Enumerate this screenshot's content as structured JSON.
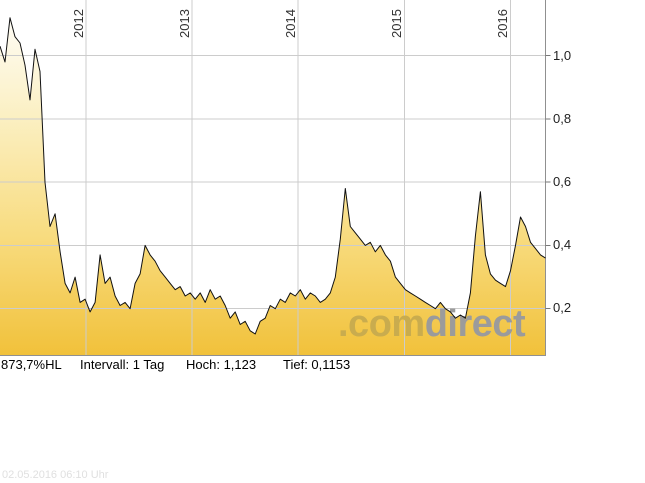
{
  "watermark": {
    "part1": ".com",
    "part2": "direct",
    "color_com": "#C9AC4E",
    "color_direct": "#9B9B9B"
  },
  "footer": {
    "change": "873,7%HL",
    "interval": "Intervall: 1 Tag",
    "high": "Hoch: 1,123",
    "low": "Tief: 0,1153"
  },
  "timestamp": "02.05.2016 06:10 Uhr",
  "chart_data": {
    "type": "area",
    "title": "",
    "xlabel": "",
    "ylabel": "",
    "interval": "1 Tag",
    "high": 1.123,
    "low": 0.1153,
    "grid": true,
    "legend": false,
    "y_axis_position": "right",
    "x_axis_position": "top",
    "x_ticks": [
      {
        "label": "2012",
        "year": 2012
      },
      {
        "label": "2013",
        "year": 2013
      },
      {
        "label": "2014",
        "year": 2014
      },
      {
        "label": "2015",
        "year": 2015
      },
      {
        "label": "2016",
        "year": 2016
      }
    ],
    "y_ticks": [
      {
        "label": "1,0",
        "value": 1.0
      },
      {
        "label": "0,8",
        "value": 0.8
      },
      {
        "label": "0,6",
        "value": 0.6
      },
      {
        "label": "0,4",
        "value": 0.4
      },
      {
        "label": "0,2",
        "value": 0.2
      }
    ],
    "xlim": [
      2011.19,
      2016.33
    ],
    "ylim": [
      0.052,
      1.176
    ],
    "values": [
      1.03,
      0.98,
      1.12,
      1.06,
      1.04,
      0.97,
      0.86,
      1.02,
      0.95,
      0.6,
      0.46,
      0.5,
      0.38,
      0.28,
      0.25,
      0.3,
      0.22,
      0.23,
      0.19,
      0.22,
      0.37,
      0.28,
      0.3,
      0.24,
      0.21,
      0.22,
      0.2,
      0.28,
      0.31,
      0.4,
      0.37,
      0.35,
      0.32,
      0.3,
      0.28,
      0.26,
      0.27,
      0.24,
      0.25,
      0.23,
      0.25,
      0.22,
      0.26,
      0.23,
      0.24,
      0.21,
      0.17,
      0.19,
      0.15,
      0.16,
      0.13,
      0.12,
      0.16,
      0.17,
      0.21,
      0.2,
      0.23,
      0.22,
      0.25,
      0.24,
      0.26,
      0.23,
      0.25,
      0.24,
      0.22,
      0.23,
      0.25,
      0.3,
      0.42,
      0.58,
      0.46,
      0.44,
      0.42,
      0.4,
      0.41,
      0.38,
      0.4,
      0.37,
      0.35,
      0.3,
      0.28,
      0.26,
      0.25,
      0.24,
      0.23,
      0.22,
      0.21,
      0.2,
      0.22,
      0.2,
      0.19,
      0.17,
      0.18,
      0.17,
      0.25,
      0.43,
      0.57,
      0.37,
      0.31,
      0.29,
      0.28,
      0.27,
      0.32,
      0.4,
      0.49,
      0.46,
      0.41,
      0.39,
      0.37,
      0.36
    ],
    "colors": {
      "fill_stops": [
        "#FFFFFF",
        "#FBF0C4",
        "#F8DC80",
        "#F1C13A"
      ],
      "line": "#111111",
      "grid": "#CCCCCC",
      "border": "#909090",
      "tick": "#777777"
    }
  }
}
